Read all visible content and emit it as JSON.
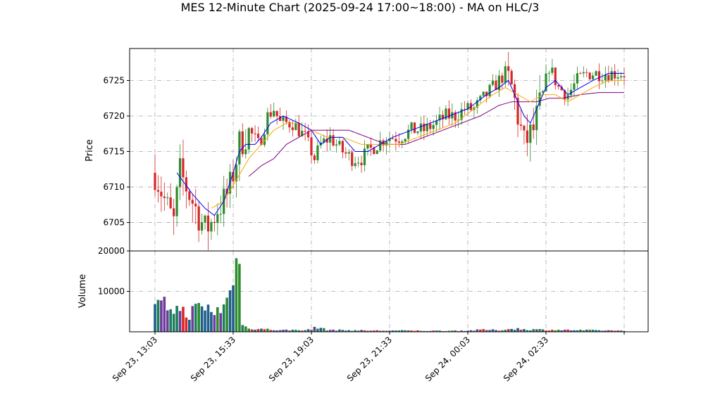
{
  "chart_data": {
    "type": "candlestick",
    "title": "MES 12-Minute Chart (2025-09-24 17:00~18:00) - MA on HLC/3",
    "price_panel": {
      "ylabel": "Price",
      "ylim": [
        6701,
        6729.5
      ],
      "yticks": [
        6705,
        6710,
        6715,
        6720,
        6725
      ],
      "grid": true
    },
    "volume_panel": {
      "ylabel": "Volume",
      "ylim": [
        0,
        20000
      ],
      "yticks": [
        10000,
        20000
      ],
      "grid": true
    },
    "x_tick_labels": [
      "Sep 23, 13:03",
      "Sep 23, 15:33",
      "Sep 23, 19:03",
      "Sep 23, 21:33",
      "Sep 24, 00:03",
      "Sep 24, 02:33"
    ],
    "x_tick_bars": [
      0,
      25,
      50,
      75,
      100,
      125
    ],
    "bar_count": 151,
    "colors": {
      "up": "#2e8b2e",
      "down": "#d62728",
      "ma_fast": "#0000ff",
      "ma_mid": "#ffa500",
      "ma_slow": "#800080"
    },
    "price_anchors": [
      [
        0,
        6712
      ],
      [
        4,
        6707
      ],
      [
        6,
        6705
      ],
      [
        8,
        6712
      ],
      [
        10,
        6710
      ],
      [
        12,
        6708
      ],
      [
        16,
        6704
      ],
      [
        18,
        6705
      ],
      [
        20,
        6707
      ],
      [
        22,
        6708
      ],
      [
        24,
        6710
      ],
      [
        27,
        6716
      ],
      [
        30,
        6718
      ],
      [
        33,
        6716
      ],
      [
        34,
        6717
      ],
      [
        36,
        6720
      ],
      [
        38,
        6721
      ],
      [
        40,
        6719
      ],
      [
        44,
        6719
      ],
      [
        46,
        6718
      ],
      [
        48,
        6717
      ],
      [
        51,
        6714
      ],
      [
        53,
        6716
      ],
      [
        56,
        6717
      ],
      [
        58,
        6716
      ],
      [
        60,
        6715
      ],
      [
        63,
        6714
      ],
      [
        66,
        6714
      ],
      [
        68,
        6715
      ],
      [
        71,
        6716
      ],
      [
        74,
        6717
      ],
      [
        78,
        6717
      ],
      [
        82,
        6718
      ],
      [
        86,
        6718
      ],
      [
        90,
        6719
      ],
      [
        93,
        6720
      ],
      [
        96,
        6720
      ],
      [
        99,
        6721
      ],
      [
        102,
        6721
      ],
      [
        104,
        6722
      ],
      [
        106,
        6723
      ],
      [
        108,
        6724
      ],
      [
        110,
        6725
      ],
      [
        112,
        6726
      ],
      [
        114,
        6724
      ],
      [
        118,
        6716
      ],
      [
        121,
        6718
      ],
      [
        124,
        6723
      ],
      [
        126,
        6727
      ],
      [
        129,
        6724
      ],
      [
        132,
        6723
      ],
      [
        135,
        6725
      ],
      [
        138,
        6726
      ],
      [
        142,
        6726
      ],
      [
        145,
        6726
      ],
      [
        150,
        6726
      ]
    ],
    "ma_fast_anchors": [
      [
        7,
        6712
      ],
      [
        12,
        6709
      ],
      [
        16,
        6707
      ],
      [
        19,
        6706
      ],
      [
        22,
        6708
      ],
      [
        25,
        6712
      ],
      [
        27,
        6715
      ],
      [
        29,
        6716
      ],
      [
        32,
        6716
      ],
      [
        34,
        6717
      ],
      [
        37,
        6719
      ],
      [
        41,
        6720
      ],
      [
        46,
        6719
      ],
      [
        50,
        6718
      ],
      [
        53,
        6716
      ],
      [
        56,
        6717
      ],
      [
        60,
        6717
      ],
      [
        64,
        6715
      ],
      [
        68,
        6715
      ],
      [
        72,
        6716
      ],
      [
        76,
        6717
      ],
      [
        82,
        6718
      ],
      [
        88,
        6719
      ],
      [
        94,
        6720
      ],
      [
        100,
        6721
      ],
      [
        106,
        6723
      ],
      [
        110,
        6724
      ],
      [
        113,
        6725
      ],
      [
        115,
        6723
      ],
      [
        118,
        6720
      ],
      [
        120,
        6719
      ],
      [
        122,
        6721
      ],
      [
        125,
        6724
      ],
      [
        128,
        6725
      ],
      [
        132,
        6723
      ],
      [
        136,
        6724
      ],
      [
        140,
        6725
      ],
      [
        145,
        6726
      ],
      [
        150,
        6726
      ]
    ],
    "ma_mid_anchors": [
      [
        18,
        6707
      ],
      [
        22,
        6708
      ],
      [
        26,
        6711
      ],
      [
        30,
        6714
      ],
      [
        34,
        6716
      ],
      [
        38,
        6718
      ],
      [
        42,
        6719
      ],
      [
        46,
        6719
      ],
      [
        50,
        6718
      ],
      [
        55,
        6717
      ],
      [
        60,
        6717
      ],
      [
        66,
        6716
      ],
      [
        72,
        6716
      ],
      [
        78,
        6716
      ],
      [
        84,
        6717
      ],
      [
        90,
        6718
      ],
      [
        96,
        6719
      ],
      [
        102,
        6721
      ],
      [
        108,
        6723
      ],
      [
        112,
        6724
      ],
      [
        116,
        6723
      ],
      [
        120,
        6722
      ],
      [
        124,
        6723
      ],
      [
        128,
        6723
      ],
      [
        132,
        6722
      ],
      [
        136,
        6723
      ],
      [
        140,
        6724
      ],
      [
        145,
        6725
      ],
      [
        150,
        6725
      ]
    ],
    "ma_slow_anchors": [
      [
        30,
        6711.5
      ],
      [
        34,
        6713
      ],
      [
        38,
        6714
      ],
      [
        42,
        6716
      ],
      [
        46,
        6717
      ],
      [
        50,
        6718
      ],
      [
        56,
        6718
      ],
      [
        62,
        6718
      ],
      [
        68,
        6717
      ],
      [
        74,
        6716
      ],
      [
        80,
        6716
      ],
      [
        86,
        6717
      ],
      [
        92,
        6718
      ],
      [
        98,
        6719
      ],
      [
        104,
        6720
      ],
      [
        110,
        6721.5
      ],
      [
        114,
        6722
      ],
      [
        118,
        6722
      ],
      [
        122,
        6722
      ],
      [
        126,
        6722.5
      ],
      [
        130,
        6722.5
      ],
      [
        136,
        6723
      ],
      [
        142,
        6723.3
      ],
      [
        150,
        6723.3
      ]
    ],
    "volume_anchors": [
      [
        0,
        6000
      ],
      [
        5,
        6500
      ],
      [
        10,
        4500
      ],
      [
        15,
        6000
      ],
      [
        20,
        5000
      ],
      [
        22,
        6500
      ],
      [
        25,
        11000
      ],
      [
        26,
        17000
      ],
      [
        28,
        1500
      ],
      [
        30,
        900
      ],
      [
        34,
        700
      ],
      [
        40,
        400
      ],
      [
        50,
        500
      ],
      [
        51,
        1200
      ],
      [
        55,
        500
      ],
      [
        60,
        400
      ],
      [
        70,
        300
      ],
      [
        80,
        300
      ],
      [
        90,
        250
      ],
      [
        100,
        300
      ],
      [
        105,
        500
      ],
      [
        110,
        400
      ],
      [
        115,
        800
      ],
      [
        118,
        600
      ],
      [
        125,
        500
      ],
      [
        135,
        400
      ],
      [
        150,
        300
      ]
    ]
  }
}
